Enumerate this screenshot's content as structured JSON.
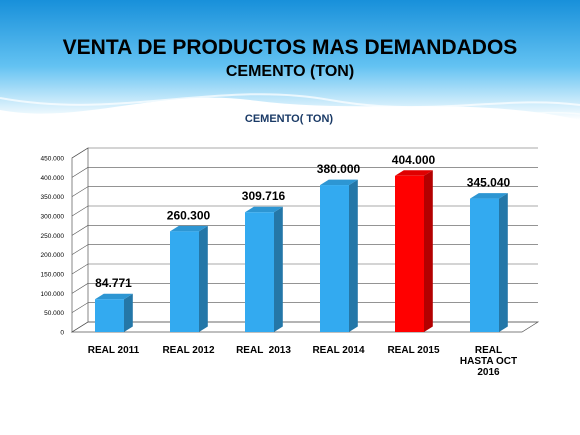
{
  "slide": {
    "title": "VENTA DE PRODUCTOS MAS DEMANDADOS",
    "subtitle": "CEMENTO (TON)"
  },
  "colors": {
    "bar": "#33aaf0",
    "bar_highlight": "#ff0000"
  },
  "chart_data": {
    "type": "bar",
    "title": "CEMENTO( TON)",
    "xlabel": "",
    "ylabel": "",
    "categories": [
      "REAL 2011",
      "REAL 2012",
      "REAL  2013",
      "REAL 2014",
      "REAL 2015",
      "REAL HASTA OCT 2016"
    ],
    "values": [
      84771,
      260300,
      309716,
      380000,
      404000,
      345040
    ],
    "data_labels": [
      "84.771",
      "260.300",
      "309.716",
      "380.000",
      "404.000",
      "345.040"
    ],
    "highlight_index": 4,
    "ylim": [
      0,
      450000
    ],
    "yticks": [
      0,
      50000,
      100000,
      150000,
      200000,
      250000,
      300000,
      350000,
      400000,
      450000
    ],
    "ytick_labels": [
      "0",
      "50.000",
      "100.000",
      "150.000",
      "200.000",
      "250.000",
      "300.000",
      "350.000",
      "400.000",
      "450.000"
    ],
    "grid": true,
    "legend": "none",
    "style": "3d"
  }
}
